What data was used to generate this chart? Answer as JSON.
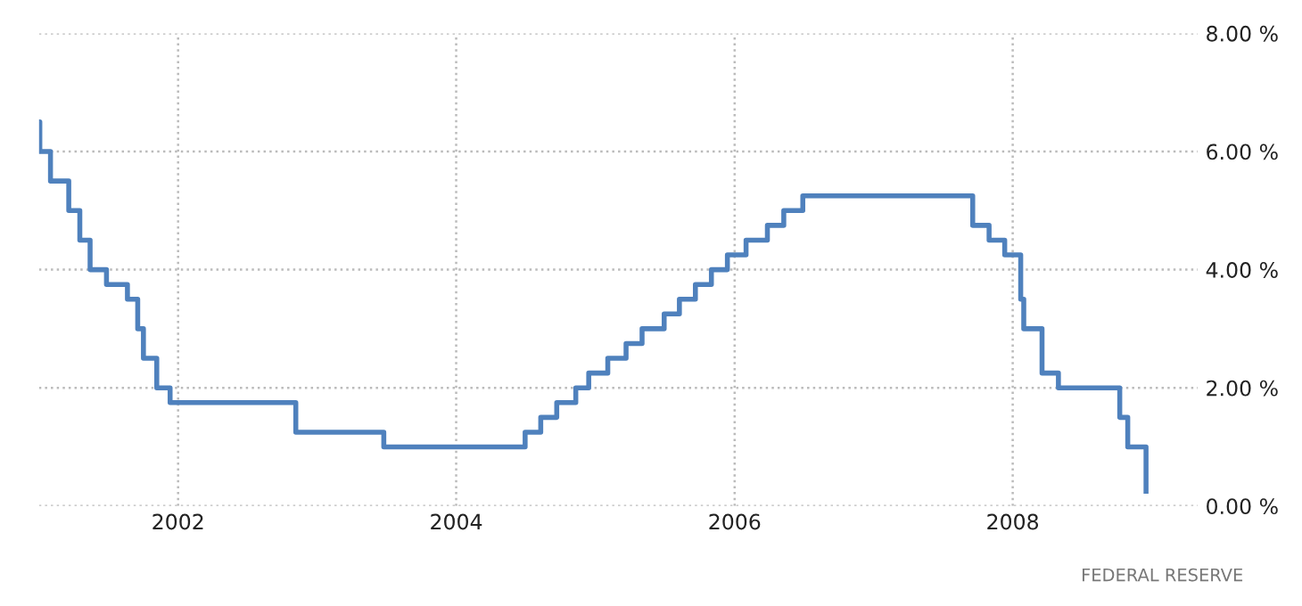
{
  "chart_data": {
    "type": "step",
    "x": [
      "2001-01-01",
      "2001-01-03",
      "2001-01-31",
      "2001-03-20",
      "2001-04-18",
      "2001-05-15",
      "2001-06-27",
      "2001-08-21",
      "2001-09-17",
      "2001-10-02",
      "2001-11-06",
      "2001-12-11",
      "2002-11-06",
      "2003-06-25",
      "2004-06-30",
      "2004-08-10",
      "2004-09-21",
      "2004-11-10",
      "2004-12-14",
      "2005-02-02",
      "2005-03-22",
      "2005-05-03",
      "2005-06-30",
      "2005-08-09",
      "2005-09-20",
      "2005-11-01",
      "2005-12-13",
      "2006-01-31",
      "2006-03-28",
      "2006-05-10",
      "2006-06-29",
      "2007-09-18",
      "2007-10-31",
      "2007-12-11",
      "2008-01-22",
      "2008-01-30",
      "2008-03-18",
      "2008-04-30",
      "2008-10-08",
      "2008-10-29",
      "2008-12-16"
    ],
    "series": [
      {
        "color": "#4f81bd",
        "values": [
          6.5,
          6.0,
          5.5,
          5.0,
          4.5,
          4.0,
          3.75,
          3.5,
          3.0,
          2.5,
          2.0,
          1.75,
          1.25,
          1.0,
          1.25,
          1.5,
          1.75,
          2.0,
          2.25,
          2.5,
          2.75,
          3.0,
          3.25,
          3.5,
          3.75,
          4.0,
          4.25,
          4.5,
          4.75,
          5.0,
          5.25,
          4.75,
          4.5,
          4.25,
          3.5,
          3.0,
          2.25,
          2.0,
          1.5,
          1.0,
          0.25
        ]
      }
    ],
    "xlim": [
      "2001-01-01",
      "2009-05-01"
    ],
    "xticks": [
      "2002",
      "2004",
      "2006",
      "2008"
    ],
    "ylim": [
      0,
      8
    ],
    "yticks": [
      {
        "value": 0,
        "label": "0.00 %"
      },
      {
        "value": 2,
        "label": "2.00 %"
      },
      {
        "value": 4,
        "label": "4.00 %"
      },
      {
        "value": 6,
        "label": "6.00 %"
      },
      {
        "value": 8,
        "label": "8.00 %"
      }
    ],
    "grid": true,
    "line_style": "solid",
    "annotations": [
      "FEDERAL RESERVE"
    ]
  }
}
